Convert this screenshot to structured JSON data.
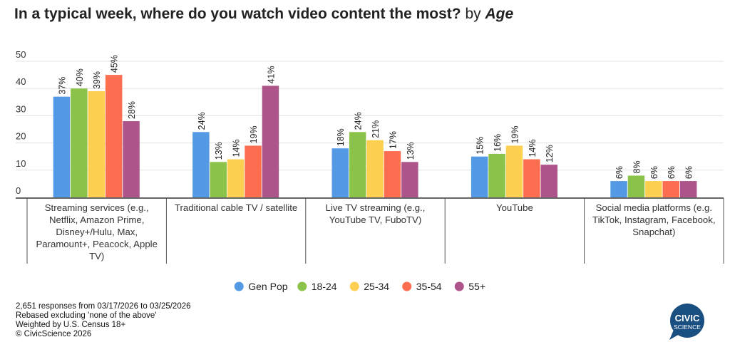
{
  "title": {
    "main": "In a typical week, where do you watch video content the most?",
    "by": "by",
    "group": "Age"
  },
  "chart_data": {
    "type": "bar",
    "title": "In a typical week, where do you watch video content the most? by Age",
    "xlabel": "",
    "ylabel": "",
    "ylim": [
      0,
      50
    ],
    "yticks": [
      0,
      10,
      20,
      30,
      40,
      50
    ],
    "grid": true,
    "legend_position": "bottom",
    "categories": [
      [
        "Streaming services (e.g.,",
        "Netflix, Amazon Prime,",
        "Disney+/Hulu, Max,",
        "Paramount+, Peacock, Apple",
        "TV)"
      ],
      [
        "Traditional cable TV / satellite"
      ],
      [
        "Live TV streaming (e.g.,",
        "YouTube TV, FuboTV)"
      ],
      [
        "YouTube"
      ],
      [
        "Social media platforms (e.g.",
        "TikTok, Instagram, Facebook,",
        "Snapchat)"
      ]
    ],
    "series": [
      {
        "name": "Gen Pop",
        "color": "#5499e3",
        "values": [
          37,
          24,
          18,
          15,
          6
        ]
      },
      {
        "name": "18-24",
        "color": "#8bc34a",
        "values": [
          40,
          13,
          24,
          16,
          8
        ]
      },
      {
        "name": "25-34",
        "color": "#fdd052",
        "values": [
          39,
          14,
          21,
          19,
          6
        ]
      },
      {
        "name": "35-54",
        "color": "#fd6e50",
        "values": [
          45,
          19,
          17,
          14,
          6
        ]
      },
      {
        "name": "55+",
        "color": "#ad548a",
        "values": [
          28,
          41,
          13,
          12,
          6
        ]
      }
    ],
    "value_suffix": "%"
  },
  "footer": [
    "2,651 responses from 03/17/2026 to 03/25/2026",
    "Rebased excluding 'none of the above'",
    "Weighted by U.S. Census 18+",
    "© CivicScience 2026"
  ],
  "logo": {
    "line1": "CIVIC",
    "line2": "SCIENCE",
    "color": "#1a4f82"
  }
}
